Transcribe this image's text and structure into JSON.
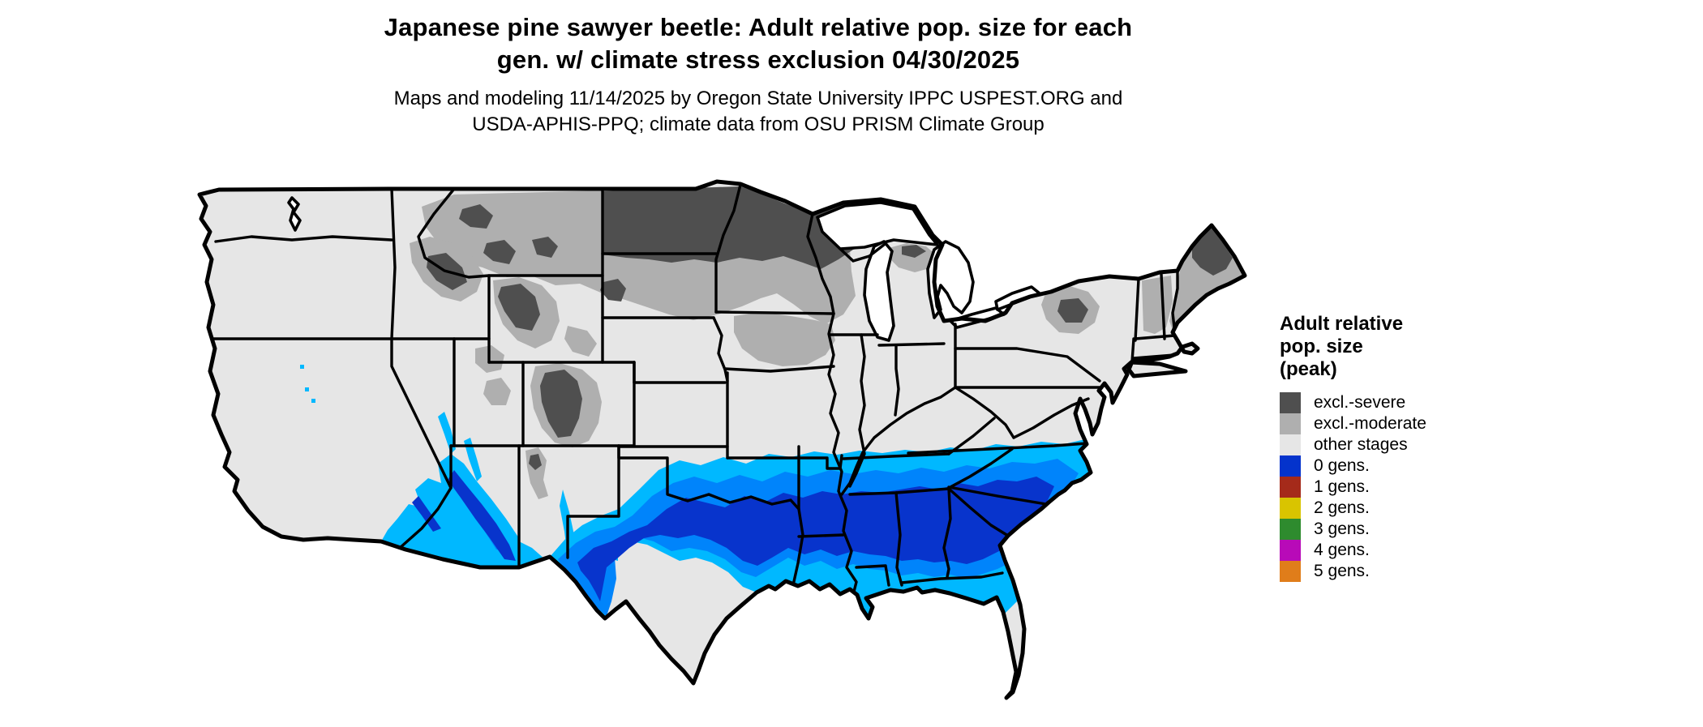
{
  "title": {
    "line1": "Japanese pine sawyer beetle: Adult relative pop. size for each",
    "line2": "gen. w/ climate stress exclusion 04/30/2025"
  },
  "subtitle": {
    "line1": "Maps and modeling 11/14/2025 by Oregon State University IPPC USPEST.ORG and",
    "line2": "USDA-APHIS-PPQ; climate data from OSU PRISM Climate Group"
  },
  "legend": {
    "title": "Adult relative\npop. size\n(peak)",
    "items": [
      {
        "label": "excl.-severe",
        "color": "#4F4F4F"
      },
      {
        "label": "excl.-moderate",
        "color": "#AFAFAF"
      },
      {
        "label": "other stages",
        "color": "#E6E6E6"
      },
      {
        "label": "0 gens.",
        "color": "#0433CC"
      },
      {
        "label": "1 gens.",
        "color": "#A52A1A"
      },
      {
        "label": "2 gens.",
        "color": "#D9C400"
      },
      {
        "label": "3 gens.",
        "color": "#2E8B2E"
      },
      {
        "label": "4 gens.",
        "color": "#B80AB8"
      },
      {
        "label": "5 gens.",
        "color": "#E07D1A"
      }
    ]
  },
  "map": {
    "description": "Contiguous United States raster map with black state borders",
    "colors": {
      "other_stages": "#E6E6E6",
      "excl_moderate": "#AFAFAF",
      "excl_severe": "#4F4F4F",
      "gens0_low_pop": "#00B8FF",
      "gens0_mid_pop": "#0084FB",
      "gens0_high_pop": "#0834CC",
      "gens_spot_florida_keys": "#E8480F",
      "border": "#000000",
      "water": "#FFFFFF"
    },
    "regions_depicted": {
      "excluded_severe": "North Dakota, Minnesota, northern Wisconsin, northern Maine, Adirondacks, Rocky Mountain cores",
      "excluded_moderate": "Montana, South Dakota, Iowa, Wisconsin, upper Michigan, New England uplands, mountain west",
      "zero_generations_blue_band": "Southern states from Arizona and Texas east to the Carolinas and Gulf coast",
      "other_stages_light_gray": "Pacific states, Great Basin, central plains, Appalachians, south Texas, Florida peninsula"
    }
  }
}
